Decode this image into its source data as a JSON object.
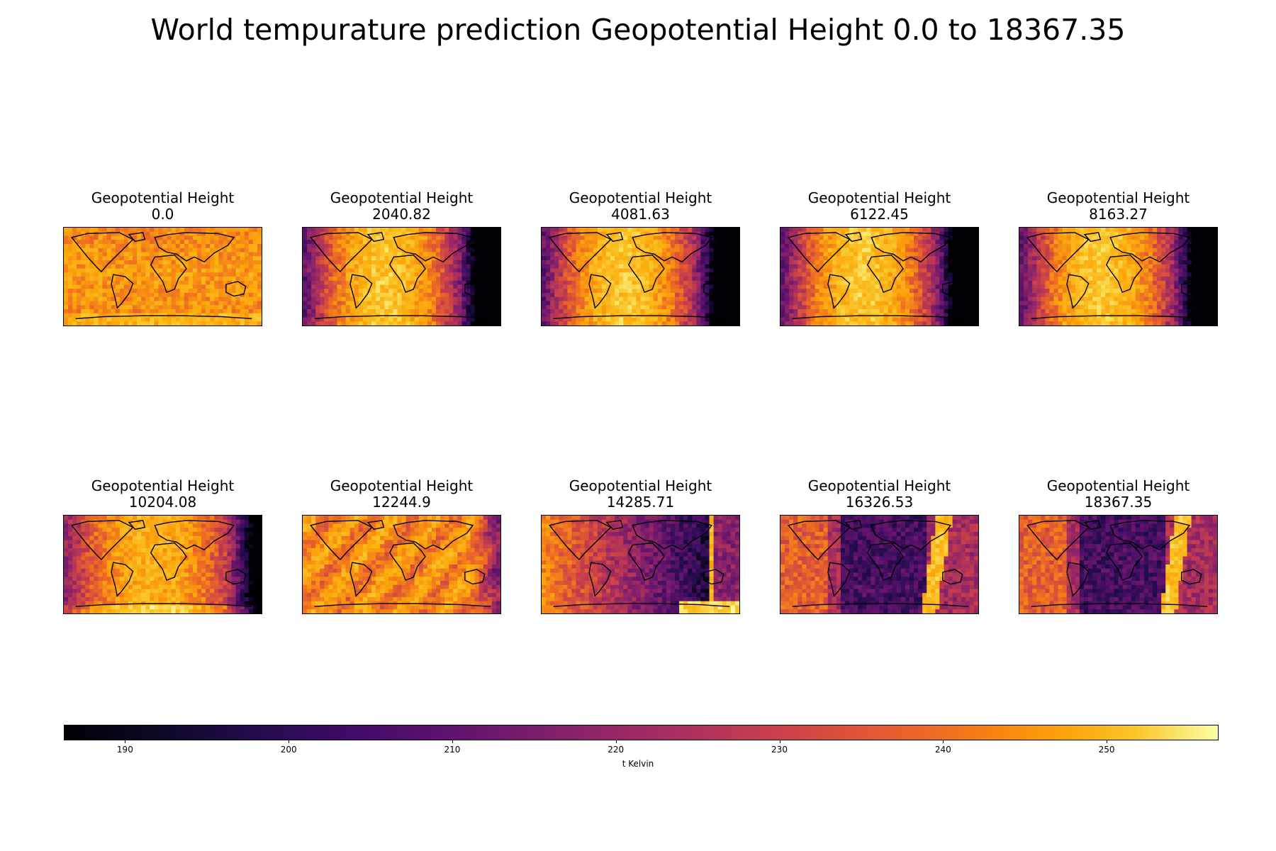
{
  "title": "World tempurature prediction Geopotential Height 0.0 to 18367.35",
  "colormap": "inferno",
  "chart_data": {
    "type": "heatmap",
    "panels": [
      {
        "title": "Geopotential Height",
        "value": "0.0",
        "pattern": "uniform-warm"
      },
      {
        "title": "Geopotential Height",
        "value": "2040.82",
        "pattern": "warm-center-cool-pacific"
      },
      {
        "title": "Geopotential Height",
        "value": "4081.63",
        "pattern": "warm-center-cool-pacific"
      },
      {
        "title": "Geopotential Height",
        "value": "6122.45",
        "pattern": "warm-center-cool-pacific"
      },
      {
        "title": "Geopotential Height",
        "value": "8163.27",
        "pattern": "warm-center-cool-pacific"
      },
      {
        "title": "Geopotential Height",
        "value": "10204.08",
        "pattern": "warm-center-cool-east"
      },
      {
        "title": "Geopotential Height",
        "value": "12244.9",
        "pattern": "orange-stripes-cool-east"
      },
      {
        "title": "Geopotential Height",
        "value": "14285.71",
        "pattern": "cool-center-warm-west"
      },
      {
        "title": "Geopotential Height",
        "value": "16326.53",
        "pattern": "dark-center-warm-band-east"
      },
      {
        "title": "Geopotential Height",
        "value": "18367.35",
        "pattern": "dark-center-warm-band-east"
      }
    ],
    "colorbar": {
      "label": "t Kelvin",
      "range": [
        186.3,
        256.8
      ],
      "ticks": [
        190,
        200,
        210,
        220,
        230,
        240,
        250
      ]
    }
  }
}
